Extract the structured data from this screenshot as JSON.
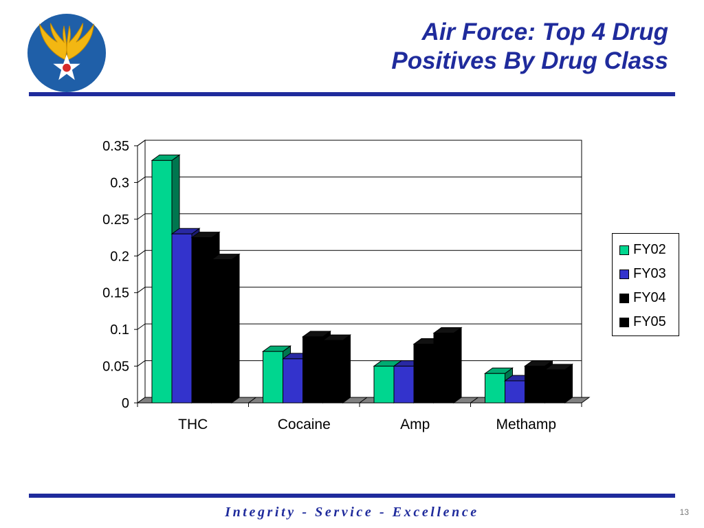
{
  "slide": {
    "title_line1": "Air Force: Top 4 Drug",
    "title_line2": "Positives By Drug Class",
    "footer": "Integrity - Service - Excellence",
    "page_number": "13"
  },
  "colors": {
    "accent": "#1f2b9c",
    "fy02": "#00d68f",
    "fy03": "#3333cc",
    "fy04": "#000000",
    "fy05": "#000000"
  },
  "chart_data": {
    "type": "bar",
    "title": "",
    "xlabel": "",
    "ylabel": "",
    "categories": [
      "THC",
      "Cocaine",
      "Amp",
      "Methamp"
    ],
    "series": [
      {
        "name": "FY02",
        "color": "#00d68f",
        "values": [
          0.33,
          0.07,
          0.05,
          0.04
        ]
      },
      {
        "name": "FY03",
        "color": "#3333cc",
        "values": [
          0.23,
          0.06,
          0.05,
          0.03
        ]
      },
      {
        "name": "FY04",
        "color": "#000000",
        "values": [
          0.225,
          0.09,
          0.08,
          0.05
        ]
      },
      {
        "name": "FY05",
        "color": "#000000",
        "values": [
          0.195,
          0.085,
          0.095,
          0.045
        ]
      }
    ],
    "yticks": [
      "0",
      "0.05",
      "0.1",
      "0.15",
      "0.2",
      "0.25",
      "0.3",
      "0.35"
    ],
    "ylim": [
      0,
      0.35
    ],
    "grid": true,
    "legend_position": "right",
    "style": "3d-clustered-column"
  }
}
